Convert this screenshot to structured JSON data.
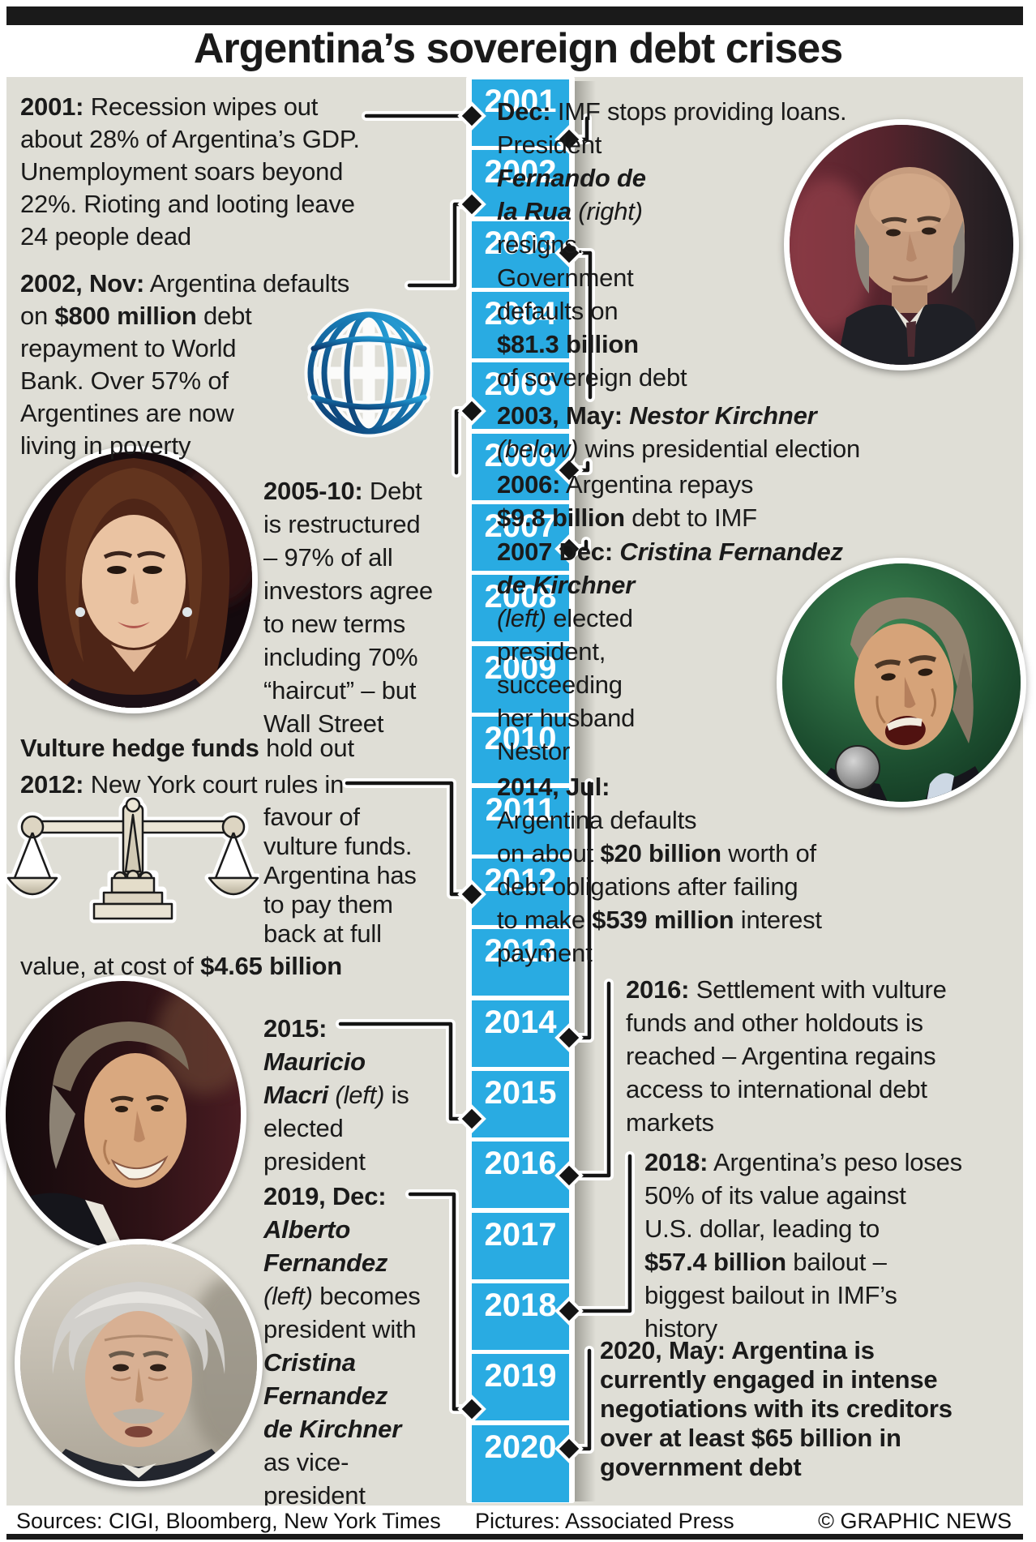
{
  "title": "Argentina’s sovereign debt crises",
  "colors": {
    "accent_cyan": "#29abe2",
    "background_gray": "#dfded6",
    "bar_black": "#1a1a1a",
    "globe_navy": "#0d3a6e",
    "globe_cyan": "#2aa9e0"
  },
  "timeline": {
    "years": [
      "2001",
      "2002",
      "2003",
      "2004",
      "2005",
      "2006",
      "2007",
      "2008",
      "2009",
      "2010",
      "2011",
      "2012",
      "2013",
      "2014",
      "2015",
      "2016",
      "2017",
      "2018",
      "2019",
      "2020"
    ]
  },
  "events": [
    {
      "id": "e2001",
      "lines": [
        [
          [
            "2001:",
            "b"
          ],
          [
            " Recession wipes out",
            ""
          ]
        ],
        [
          [
            "about 28% of Argentina’s GDP.",
            ""
          ]
        ],
        [
          [
            "Unemployment soars beyond",
            ""
          ]
        ],
        [
          [
            "22%. Rioting and looting leave",
            ""
          ]
        ],
        [
          [
            "24 people dead",
            ""
          ]
        ]
      ]
    },
    {
      "id": "e2002",
      "lines": [
        [
          [
            "2002, Nov:",
            "b"
          ],
          [
            " Argentina defaults",
            ""
          ]
        ],
        [
          [
            "on ",
            ""
          ],
          [
            "$800 million",
            "b"
          ],
          [
            " debt",
            ""
          ]
        ],
        [
          [
            "repayment to World",
            ""
          ]
        ],
        [
          [
            "Bank. Over 57% of",
            ""
          ]
        ],
        [
          [
            "Argentines are now",
            ""
          ]
        ],
        [
          [
            "living in poverty",
            ""
          ]
        ]
      ]
    },
    {
      "id": "e2005",
      "lines": [
        [
          [
            "2005-10:",
            "b"
          ],
          [
            " Debt",
            ""
          ]
        ],
        [
          [
            "is restructured",
            ""
          ]
        ],
        [
          [
            "– 97% of all",
            ""
          ]
        ],
        [
          [
            "investors agree",
            ""
          ]
        ],
        [
          [
            "to new terms",
            ""
          ]
        ],
        [
          [
            "including 70%",
            ""
          ]
        ],
        [
          [
            "“haircut” – but",
            ""
          ]
        ],
        [
          [
            "Wall Street",
            ""
          ]
        ]
      ]
    },
    {
      "id": "evult",
      "lines": [
        [
          [
            "Vulture hedge funds",
            "b"
          ],
          [
            " hold out",
            ""
          ]
        ]
      ]
    },
    {
      "id": "e2012a",
      "lines": [
        [
          [
            "2012:",
            "b"
          ],
          [
            " New York court rules in",
            ""
          ]
        ]
      ]
    },
    {
      "id": "e2012b",
      "lines": [
        [
          [
            "favour of",
            ""
          ]
        ],
        [
          [
            "vulture funds.",
            ""
          ]
        ],
        [
          [
            "Argentina has",
            ""
          ]
        ],
        [
          [
            "to pay them",
            ""
          ]
        ],
        [
          [
            "back at full",
            ""
          ]
        ]
      ]
    },
    {
      "id": "e2012c",
      "lines": [
        [
          [
            "value, at cost of ",
            ""
          ],
          [
            "$4.65 billion",
            "b"
          ]
        ]
      ]
    },
    {
      "id": "e2015",
      "lines": [
        [
          [
            "2015:",
            "b"
          ]
        ],
        [
          [
            "Mauricio",
            "bi"
          ]
        ],
        [
          [
            "Macri",
            "bi"
          ],
          [
            " (left)",
            "i"
          ],
          [
            " is",
            ""
          ]
        ],
        [
          [
            "elected",
            ""
          ]
        ],
        [
          [
            "president",
            ""
          ]
        ]
      ]
    },
    {
      "id": "e2019",
      "lines": [
        [
          [
            "2019, Dec:",
            "b"
          ]
        ],
        [
          [
            "Alberto",
            "bi"
          ]
        ],
        [
          [
            "Fernandez",
            "bi"
          ]
        ],
        [
          [
            "(left)",
            "i"
          ],
          [
            " becomes",
            ""
          ]
        ],
        [
          [
            "president with",
            ""
          ]
        ],
        [
          [
            "Cristina",
            "bi"
          ]
        ],
        [
          [
            "Fernandez",
            "bi"
          ]
        ],
        [
          [
            "de Kirchner",
            "bi"
          ]
        ],
        [
          [
            "as vice-",
            ""
          ]
        ],
        [
          [
            "president",
            ""
          ]
        ]
      ]
    },
    {
      "id": "rdec",
      "lines": [
        [
          [
            "Dec:",
            "b"
          ],
          [
            " IMF stops providing loans.",
            ""
          ]
        ],
        [
          [
            "President",
            ""
          ]
        ],
        [
          [
            "Fernando de",
            "bi"
          ]
        ],
        [
          [
            "la Rua",
            "bi"
          ],
          [
            " (right)",
            "i"
          ]
        ],
        [
          [
            "resigns.",
            ""
          ]
        ],
        [
          [
            "Government",
            ""
          ]
        ],
        [
          [
            "defaults on",
            ""
          ]
        ],
        [
          [
            "$81.3 billion",
            "b"
          ]
        ],
        [
          [
            "of sovereign debt",
            ""
          ]
        ]
      ]
    },
    {
      "id": "r2003",
      "lines": [
        [
          [
            "2003, May: ",
            "b"
          ],
          [
            "Nestor Kirchner",
            "bi"
          ]
        ],
        [
          [
            "(below)",
            "i"
          ],
          [
            " wins presidential election",
            ""
          ]
        ]
      ]
    },
    {
      "id": "r2006",
      "lines": [
        [
          [
            "2006:",
            "b"
          ],
          [
            " Argentina repays",
            ""
          ]
        ],
        [
          [
            "$9.8 billion",
            "b"
          ],
          [
            " debt to IMF",
            ""
          ]
        ]
      ]
    },
    {
      "id": "r2007",
      "lines": [
        [
          [
            "2007 Dec: ",
            "b"
          ],
          [
            "Cristina Fernandez",
            "bi"
          ]
        ],
        [
          [
            "de Kirchner",
            "bi"
          ]
        ],
        [
          [
            "(left)",
            "i"
          ],
          [
            " elected",
            ""
          ]
        ],
        [
          [
            "president,",
            ""
          ]
        ],
        [
          [
            "succeeding",
            ""
          ]
        ],
        [
          [
            "her husband",
            ""
          ]
        ],
        [
          [
            "Nestor",
            ""
          ]
        ]
      ]
    },
    {
      "id": "r2014",
      "lines": [
        [
          [
            "2014, Jul:",
            "b"
          ]
        ],
        [
          [
            "Argentina defaults",
            ""
          ]
        ],
        [
          [
            "on about ",
            ""
          ],
          [
            "$20 billion",
            "b"
          ],
          [
            " worth of",
            ""
          ]
        ],
        [
          [
            "debt obligations after failing",
            ""
          ]
        ],
        [
          [
            "to make ",
            ""
          ],
          [
            "$539 million",
            "b"
          ],
          [
            " interest",
            ""
          ]
        ],
        [
          [
            "payment",
            ""
          ]
        ]
      ]
    },
    {
      "id": "r2016",
      "lines": [
        [
          [
            "2016:",
            "b"
          ],
          [
            " Settlement with vulture",
            ""
          ]
        ],
        [
          [
            "funds and other holdouts is",
            ""
          ]
        ],
        [
          [
            "reached – Argentina regains",
            ""
          ]
        ],
        [
          [
            "access to international debt",
            ""
          ]
        ],
        [
          [
            "markets",
            ""
          ]
        ]
      ]
    },
    {
      "id": "r2018",
      "lines": [
        [
          [
            "2018:",
            "b"
          ],
          [
            " Argentina’s peso loses",
            ""
          ]
        ],
        [
          [
            "50% of its value against",
            ""
          ]
        ],
        [
          [
            "U.S. dollar, leading to",
            ""
          ]
        ],
        [
          [
            "$57.4 billion",
            "b"
          ],
          [
            " bailout –",
            ""
          ]
        ],
        [
          [
            "biggest bailout in IMF’s",
            ""
          ]
        ],
        [
          [
            "history",
            ""
          ]
        ]
      ]
    },
    {
      "id": "r2020",
      "lines": [
        [
          [
            "2020, May: Argentina is",
            "b"
          ]
        ],
        [
          [
            "currently engaged in intense",
            "b"
          ]
        ],
        [
          [
            "negotiations with its creditors",
            "b"
          ]
        ],
        [
          [
            "over at least $65 billion in",
            "b"
          ]
        ],
        [
          [
            "government debt",
            "b"
          ]
        ]
      ]
    }
  ],
  "icons": {
    "globe": "world-bank-globe-icon",
    "scales": "scales-of-justice-icon",
    "marker": "timeline-diamond-marker"
  },
  "photos": [
    "Fernando de la Rua",
    "Cristina Fernandez de Kirchner",
    "Nestor Kirchner",
    "Mauricio Macri",
    "Alberto Fernandez"
  ],
  "footer": {
    "sources": "Sources: CIGI, Bloomberg, New York Times",
    "pictures": "Pictures: Associated Press",
    "copyright": "© GRAPHIC NEWS"
  }
}
